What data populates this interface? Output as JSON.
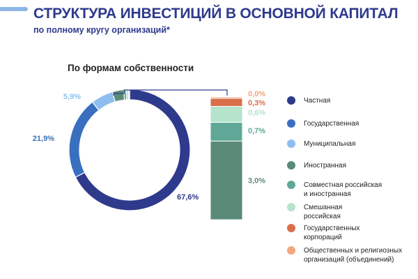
{
  "title": "СТРУКТУРА ИНВЕСТИЦИЙ В ОСНОВНОЙ КАПИТАЛ",
  "subtitle": "по полному кругу организаций*",
  "section_title": "По формам собственности",
  "colors": {
    "title": "#2e3a8c",
    "accent_bar": "#8fb6e8"
  },
  "chart_data": [
    {
      "type": "pie",
      "title": "По формам собственности",
      "categories": [
        "Частная",
        "Государственная",
        "Муниципальная",
        "Иностранная",
        "Совместная российская и иностранная",
        "Смешанная российская",
        "Государственных корпораций",
        "Общественных и религиозных организаций (объединений)"
      ],
      "values": [
        67.6,
        21.9,
        5.9,
        3.0,
        0.7,
        0.6,
        0.3,
        0.0
      ],
      "labels": [
        "67,6%",
        "21,9%",
        "5,9%",
        "",
        "",
        "",
        "",
        ""
      ],
      "colors": [
        "#2e3a8c",
        "#3a6fc0",
        "#8fbdf0",
        "#5a8a78",
        "#5fa898",
        "#b5e3cc",
        "#d9704a",
        "#f3a77c"
      ]
    },
    {
      "type": "bar",
      "stacked": true,
      "categories": [
        "Иностранная",
        "Совместная российская и иностранная",
        "Смешанная российская",
        "Государственных корпораций",
        "Общественных и религиозных организаций (объединений)"
      ],
      "values": [
        3.0,
        0.7,
        0.6,
        0.3,
        0.0
      ],
      "labels": [
        "3,0%",
        "0,7%",
        "0,6%",
        "0,3%",
        "0,0%"
      ],
      "colors": [
        "#5a8a78",
        "#5fa898",
        "#b5e3cc",
        "#d9704a",
        "#f3a77c"
      ]
    }
  ],
  "legend": [
    {
      "label": "Частная",
      "color": "#2e3a8c"
    },
    {
      "label": "Государственная",
      "color": "#3a6fc0"
    },
    {
      "label": "Муниципальная",
      "color": "#8fbdf0"
    },
    {
      "label": "Иностранная",
      "color": "#5a8a78"
    },
    {
      "label": "Совместная российская\nи иностранная",
      "color": "#5fa898"
    },
    {
      "label": "Смешанная\nроссийская",
      "color": "#b5e3cc"
    },
    {
      "label": "Государственных\nкорпораций",
      "color": "#d9704a"
    },
    {
      "label": "Общественных и религиозных\nорганизаций (объединений)",
      "color": "#f3a77c"
    }
  ]
}
